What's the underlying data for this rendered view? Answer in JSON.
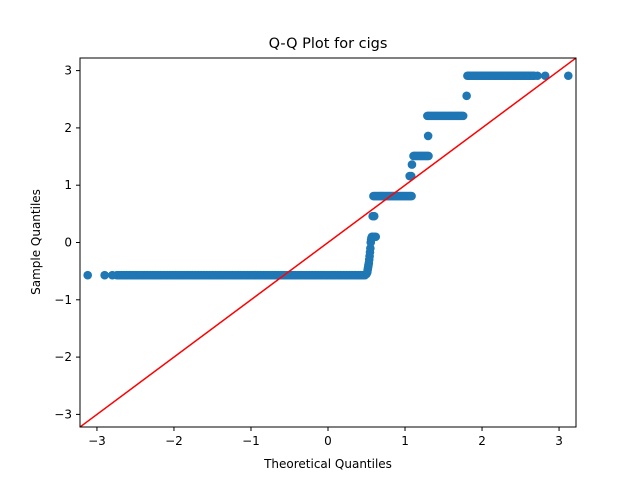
{
  "chart_data": {
    "type": "scatter",
    "title": "Q-Q Plot for cigs",
    "xlabel": "Theoretical Quantiles",
    "ylabel": "Sample Quantiles",
    "xlim": [
      -3.22,
      3.22
    ],
    "ylim": [
      -3.22,
      3.22
    ],
    "xticks": [
      -3,
      -2,
      -1,
      0,
      1,
      2,
      3
    ],
    "yticks": [
      -3,
      -2,
      -1,
      0,
      1,
      2,
      3
    ],
    "xtick_labels": [
      "−3",
      "−2",
      "−1",
      "0",
      "1",
      "2",
      "3"
    ],
    "ytick_labels": [
      "−3",
      "−2",
      "−1",
      "0",
      "1",
      "2",
      "3"
    ],
    "grid": false,
    "marker_color": "#1f77b4",
    "line_color": "#ff0000",
    "reference_line": {
      "type": "45-degree",
      "slope": 1,
      "intercept": 0
    },
    "series": [
      {
        "segments": [
          {
            "x_from": -2.74,
            "x_to": 0.49,
            "y": -0.57,
            "step": 0.02
          },
          {
            "x_from": 0.59,
            "x_to": 1.09,
            "y": 0.81,
            "step": 0.015
          },
          {
            "x_from": 1.11,
            "x_to": 1.31,
            "y": 1.51,
            "step": 0.015
          },
          {
            "x_from": 1.29,
            "x_to": 1.76,
            "y": 2.21,
            "step": 0.015
          },
          {
            "x_from": 1.81,
            "x_to": 2.68,
            "y": 2.91,
            "step": 0.015
          }
        ],
        "points": [
          [
            -3.12,
            -0.57
          ],
          [
            -2.9,
            -0.57
          ],
          [
            -2.8,
            -0.57
          ],
          [
            0.5,
            -0.55
          ],
          [
            0.51,
            -0.52
          ],
          [
            0.515,
            -0.48
          ],
          [
            0.52,
            -0.44
          ],
          [
            0.525,
            -0.4
          ],
          [
            0.53,
            -0.36
          ],
          [
            0.535,
            -0.3
          ],
          [
            0.54,
            -0.24
          ],
          [
            0.545,
            -0.17
          ],
          [
            0.55,
            -0.1
          ],
          [
            0.555,
            0.0
          ],
          [
            0.56,
            0.05
          ],
          [
            0.565,
            0.08
          ],
          [
            0.57,
            0.1
          ],
          [
            0.58,
            0.1
          ],
          [
            0.6,
            0.1
          ],
          [
            0.62,
            0.1
          ],
          [
            0.58,
            0.46
          ],
          [
            0.6,
            0.46
          ],
          [
            1.06,
            1.16
          ],
          [
            1.08,
            1.16
          ],
          [
            1.09,
            1.36
          ],
          [
            1.3,
            1.86
          ],
          [
            1.8,
            2.56
          ],
          [
            2.72,
            2.91
          ],
          [
            2.82,
            2.91
          ],
          [
            3.12,
            2.91
          ]
        ]
      }
    ]
  }
}
